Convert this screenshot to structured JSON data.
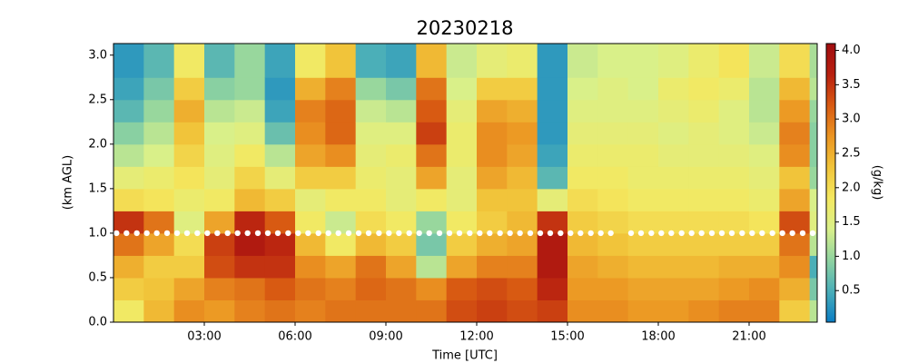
{
  "chart_data": {
    "type": "heatmap",
    "title": "20230218",
    "xlabel": "Time [UTC]",
    "ylabel": "(km AGL)",
    "colorbar_label": "(g/kg)",
    "x_edges": [
      0,
      1,
      2,
      3,
      4,
      5,
      6,
      7,
      8,
      9,
      10,
      11,
      12,
      13,
      14,
      15,
      16,
      17,
      18,
      19,
      20,
      21,
      22,
      23,
      23.25
    ],
    "y_edges": [
      0,
      0.25,
      0.5,
      0.75,
      1,
      1.25,
      1.5,
      1.75,
      2,
      2.25,
      2.5,
      2.75,
      3.13
    ],
    "values": [
      [
        1.8,
        2.2,
        2.5,
        3.0,
        3.5,
        2.0,
        1.6,
        1.2,
        0.9,
        0.6,
        0.4,
        0.3
      ],
      [
        2.4,
        2.3,
        2.2,
        2.6,
        3.0,
        1.9,
        1.7,
        1.4,
        1.2,
        1.0,
        0.8,
        0.6
      ],
      [
        2.8,
        2.6,
        2.2,
        2.0,
        1.5,
        1.7,
        1.9,
        2.1,
        2.3,
        2.5,
        2.2,
        1.8
      ],
      [
        2.7,
        2.9,
        3.3,
        3.4,
        2.6,
        1.8,
        1.6,
        1.5,
        1.4,
        1.2,
        0.9,
        0.6
      ],
      [
        2.9,
        3.0,
        3.5,
        3.8,
        3.6,
        2.4,
        2.1,
        1.8,
        1.5,
        1.3,
        1.0,
        1.0
      ],
      [
        3.0,
        3.2,
        3.5,
        3.6,
        3.2,
        2.2,
        1.6,
        1.2,
        0.7,
        0.4,
        0.3,
        0.4
      ],
      [
        2.9,
        3.0,
        2.8,
        2.4,
        1.8,
        1.6,
        2.2,
        2.6,
        2.8,
        2.9,
        2.5,
        1.8
      ],
      [
        3.0,
        2.9,
        2.6,
        1.8,
        1.3,
        1.8,
        2.2,
        2.8,
        3.1,
        3.1,
        2.9,
        2.3
      ],
      [
        3.0,
        3.1,
        3.0,
        2.4,
        2.0,
        1.8,
        1.7,
        1.6,
        1.5,
        1.3,
        1.0,
        0.5
      ],
      [
        3.0,
        3.0,
        2.6,
        2.2,
        1.8,
        1.6,
        1.6,
        1.7,
        1.5,
        1.2,
        0.8,
        0.4
      ],
      [
        3.0,
        2.8,
        1.2,
        0.8,
        1.0,
        1.8,
        2.6,
        3.0,
        3.4,
        3.2,
        3.0,
        2.4
      ],
      [
        3.3,
        3.2,
        2.6,
        2.2,
        1.8,
        1.6,
        1.6,
        1.7,
        1.7,
        1.6,
        1.4,
        1.3
      ],
      [
        3.4,
        3.3,
        2.9,
        2.5,
        2.2,
        2.3,
        2.6,
        2.8,
        2.8,
        2.6,
        2.2,
        1.6
      ],
      [
        3.3,
        3.2,
        2.9,
        2.6,
        2.4,
        2.3,
        2.4,
        2.6,
        2.7,
        2.5,
        2.2,
        1.7
      ],
      [
        3.4,
        3.6,
        3.8,
        3.8,
        3.5,
        1.6,
        0.6,
        0.4,
        0.3,
        0.3,
        0.3,
        0.3
      ],
      [
        2.8,
        2.7,
        2.6,
        2.4,
        2.2,
        2.0,
        1.8,
        1.7,
        1.6,
        1.5,
        1.4,
        1.3
      ],
      [
        2.8,
        2.7,
        2.5,
        2.3,
        2.1,
        1.9,
        1.8,
        1.7,
        1.6,
        1.5,
        1.5,
        1.4
      ],
      [
        2.7,
        2.6,
        2.4,
        2.2,
        2.0,
        1.8,
        1.7,
        1.7,
        1.6,
        1.5,
        1.4,
        1.4
      ],
      [
        2.7,
        2.6,
        2.4,
        2.2,
        2.0,
        1.8,
        1.7,
        1.6,
        1.5,
        1.6,
        1.7,
        1.5
      ],
      [
        2.8,
        2.6,
        2.4,
        2.2,
        2.0,
        1.8,
        1.7,
        1.6,
        1.6,
        1.7,
        1.8,
        1.7
      ],
      [
        2.9,
        2.7,
        2.5,
        2.2,
        2.0,
        1.8,
        1.7,
        1.6,
        1.5,
        1.5,
        1.7,
        1.9
      ],
      [
        2.9,
        2.8,
        2.5,
        2.2,
        1.9,
        1.7,
        1.6,
        1.5,
        1.3,
        1.2,
        1.2,
        1.3
      ],
      [
        2.2,
        2.5,
        2.8,
        3.0,
        3.3,
        2.6,
        2.3,
        2.8,
        2.9,
        2.7,
        2.4,
        2.0
      ],
      [
        1.2,
        0.8,
        0.5,
        1.2,
        1.5,
        1.4,
        1.0,
        0.9,
        0.9,
        1.0,
        1.2,
        1.1
      ]
    ],
    "colormap": [
      "#0a7dc4",
      "#4aaeb8",
      "#8fd3a0",
      "#d9f08a",
      "#f4e860",
      "#f1c43a",
      "#eb9522",
      "#d85a12",
      "#b82010",
      "#a00d10"
    ],
    "clim": [
      0.04,
      4.1
    ],
    "cticks": [
      0.5,
      {
        "value": 1,
        "label": "1.0"
      },
      1.5,
      {
        "value": 2,
        "label": "2.0"
      },
      2.5,
      {
        "value": 3,
        "label": "3.0"
      },
      3.5,
      {
        "value": 4,
        "label": "4.0"
      }
    ],
    "markers": {
      "color": "#ffffff",
      "x": [
        0.1,
        0.43,
        0.77,
        1.1,
        1.43,
        1.77,
        2.1,
        2.43,
        2.77,
        3.1,
        3.43,
        3.77,
        4.1,
        4.43,
        4.77,
        5.1,
        5.43,
        5.77,
        6.1,
        6.43,
        6.77,
        7.1,
        7.43,
        7.77,
        8.1,
        8.43,
        8.77,
        9.1,
        9.43,
        9.77,
        10.1,
        10.43,
        10.77,
        11.1,
        11.43,
        11.77,
        12.1,
        12.43,
        12.77,
        13.1,
        13.43,
        13.77,
        14.1,
        14.43,
        14.77,
        15.1,
        15.43,
        15.77,
        16.1,
        16.43,
        17.1,
        17.43,
        17.77,
        18.1,
        18.43,
        18.77,
        19.1,
        19.43,
        19.77,
        20.1,
        20.43,
        20.77,
        21.1,
        21.43,
        21.77,
        22.1,
        22.43,
        22.77,
        23.1
      ],
      "values": [
        1,
        1,
        1,
        1,
        1,
        1,
        1,
        1,
        1,
        1,
        1,
        1,
        1,
        1,
        1,
        1,
        1,
        1,
        1,
        1,
        1,
        1,
        1,
        1,
        1,
        1,
        1,
        1,
        1,
        1,
        1,
        1,
        1,
        1,
        1,
        1,
        1,
        1,
        1,
        1,
        1,
        1,
        1,
        1,
        1,
        1,
        1,
        1,
        1,
        1,
        1,
        1,
        1,
        1,
        1,
        1,
        1,
        1,
        1,
        1,
        1,
        1,
        1,
        1,
        1,
        1,
        1,
        1,
        1
      ]
    },
    "xlim": [
      0,
      23.25
    ],
    "ylim": [
      0,
      3.13
    ],
    "xticks": [
      {
        "value": 3,
        "label": "03:00"
      },
      {
        "value": 6,
        "label": "06:00"
      },
      {
        "value": 9,
        "label": "09:00"
      },
      {
        "value": 12,
        "label": "12:00"
      },
      {
        "value": 15,
        "label": "15:00"
      },
      {
        "value": 18,
        "label": "18:00"
      },
      {
        "value": 21,
        "label": "21:00"
      }
    ],
    "yticks": [
      {
        "value": 0,
        "label": "0.0"
      },
      0.5,
      {
        "value": 1,
        "label": "1.0"
      },
      1.5,
      {
        "value": 2,
        "label": "2.0"
      },
      2.5,
      {
        "value": 3,
        "label": "3.0"
      }
    ]
  }
}
